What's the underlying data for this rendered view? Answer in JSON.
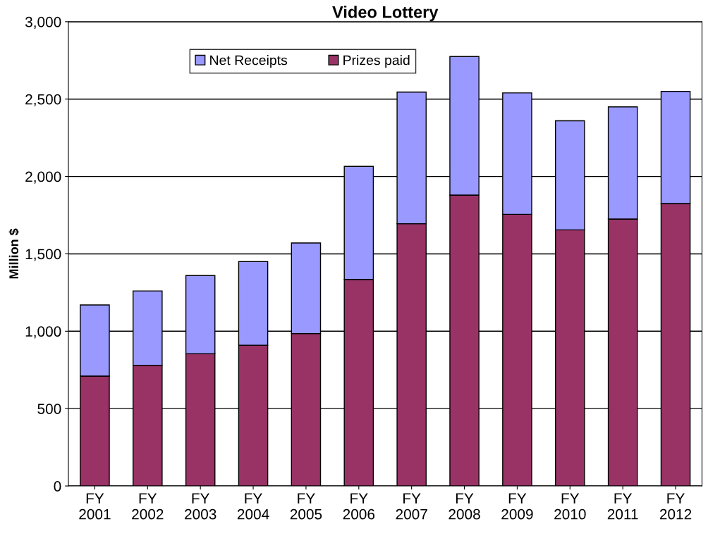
{
  "chart_data": {
    "type": "bar",
    "title": "Video Lottery",
    "ylabel": "Million $",
    "categories": [
      "FY\n2001",
      "FY\n2002",
      "FY\n2003",
      "FY\n2004",
      "FY\n2005",
      "FY\n2006",
      "FY\n2007",
      "FY\n2008",
      "FY\n2009",
      "FY\n2010",
      "FY\n2011",
      "FY\n2012"
    ],
    "stacked": true,
    "series": [
      {
        "name": "Prizes paid",
        "color": "#993366",
        "values": [
          710,
          780,
          855,
          910,
          985,
          1335,
          1695,
          1880,
          1755,
          1655,
          1725,
          1825
        ]
      },
      {
        "name": "Net Receipts",
        "color": "#9999ff",
        "values": [
          460,
          480,
          505,
          540,
          585,
          730,
          850,
          895,
          785,
          705,
          725,
          725
        ]
      }
    ],
    "ylim": [
      0,
      3000
    ],
    "yticks": [
      {
        "value": 0,
        "label": "0"
      },
      {
        "value": 500,
        "label": "500"
      },
      {
        "value": 1000,
        "label": "1,000"
      },
      {
        "value": 1500,
        "label": "1,500"
      },
      {
        "value": 2000,
        "label": "2,000"
      },
      {
        "value": 2500,
        "label": "2,500"
      },
      {
        "value": 3000,
        "label": "3,000"
      }
    ],
    "grid": "y",
    "legend": "top"
  }
}
